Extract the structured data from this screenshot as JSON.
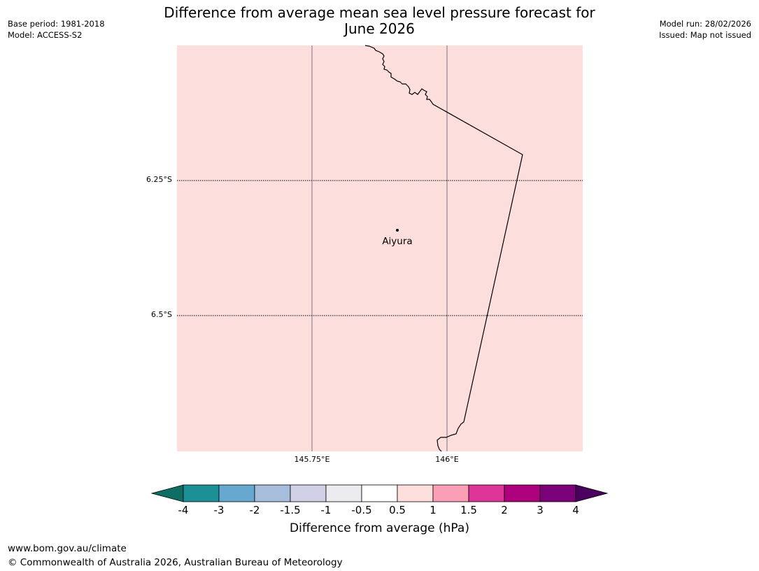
{
  "header": {
    "title_line1": "Difference from average mean sea level pressure forecast for",
    "title_line2": "June 2026",
    "base_period": "Base period: 1981-2018",
    "model": "Model: ACCESS-S2",
    "model_run": "Model run: 28/02/2026",
    "issued": "Issued: Map not issued"
  },
  "map": {
    "fill_color": "#fcdedc",
    "lat_labels": [
      "6.25°S",
      "6.5°S"
    ],
    "lon_labels": [
      "145.75°E",
      "146°E"
    ],
    "place": {
      "name": "Aiyura",
      "marker": "dot"
    }
  },
  "colorbar": {
    "title": "Difference from average (hPa)",
    "ticks": [
      "-4",
      "-3",
      "-2",
      "-1.5",
      "-1",
      "-0.5",
      "0.5",
      "1",
      "1.5",
      "2",
      "3",
      "4"
    ],
    "low_extend_color": "#0e6e63",
    "high_extend_color": "#4a005e",
    "colors": [
      "#1b9196",
      "#66a8cf",
      "#a6bddb",
      "#d0d0e6",
      "#ecebf0",
      "#ffffff",
      "#fde0dd",
      "#fa9fb5",
      "#dd3497",
      "#ae017e",
      "#7a0177"
    ]
  },
  "footer": {
    "url": "www.bom.gov.au/climate",
    "copyright": "© Commonwealth of Australia 2026, Australian Bureau of Meteorology"
  }
}
